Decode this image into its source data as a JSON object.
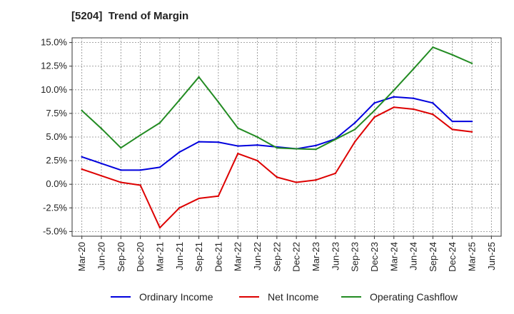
{
  "chart_data": {
    "type": "line",
    "title": "[5204]  Trend of Margin",
    "xlabel": "",
    "ylabel": "",
    "categories": [
      "Mar-20",
      "Jun-20",
      "Sep-20",
      "Dec-20",
      "Mar-21",
      "Jun-21",
      "Sep-21",
      "Dec-21",
      "Mar-22",
      "Jun-22",
      "Sep-22",
      "Dec-22",
      "Mar-23",
      "Jun-23",
      "Sep-23",
      "Dec-23",
      "Mar-24",
      "Jun-24",
      "Sep-24",
      "Dec-24",
      "Mar-25",
      "Jun-25"
    ],
    "y_ticks": [
      "15.0%",
      "12.5%",
      "10.0%",
      "7.5%",
      "5.0%",
      "2.5%",
      "0.0%",
      "-2.5%",
      "-5.0%"
    ],
    "y_tick_values": [
      15.0,
      12.5,
      10.0,
      7.5,
      5.0,
      2.5,
      0.0,
      -2.5,
      -5.0
    ],
    "ylim": [
      -5.5,
      15.5
    ],
    "grid": true,
    "legend_position": "bottom",
    "series": [
      {
        "name": "Ordinary Income",
        "color": "#0000dd",
        "values": [
          2.9,
          2.2,
          1.5,
          1.5,
          1.8,
          3.4,
          4.5,
          4.45,
          4.05,
          4.15,
          3.95,
          3.75,
          4.1,
          4.8,
          6.5,
          8.6,
          9.25,
          9.1,
          8.6,
          6.65,
          6.65,
          null
        ]
      },
      {
        "name": "Net Income",
        "color": "#dd0000",
        "values": [
          1.6,
          0.9,
          0.2,
          -0.1,
          -4.6,
          -2.5,
          -1.5,
          -1.25,
          3.25,
          2.5,
          0.75,
          0.2,
          0.45,
          1.15,
          4.5,
          7.1,
          8.15,
          7.95,
          7.4,
          5.8,
          5.55,
          null
        ]
      },
      {
        "name": "Operating Cashflow",
        "color": "#228b22",
        "values": [
          7.8,
          5.9,
          3.85,
          5.2,
          6.5,
          8.9,
          11.35,
          8.7,
          5.95,
          5.0,
          3.85,
          3.75,
          3.7,
          4.75,
          5.8,
          7.8,
          9.95,
          12.2,
          14.5,
          13.7,
          12.8,
          null
        ]
      }
    ]
  }
}
